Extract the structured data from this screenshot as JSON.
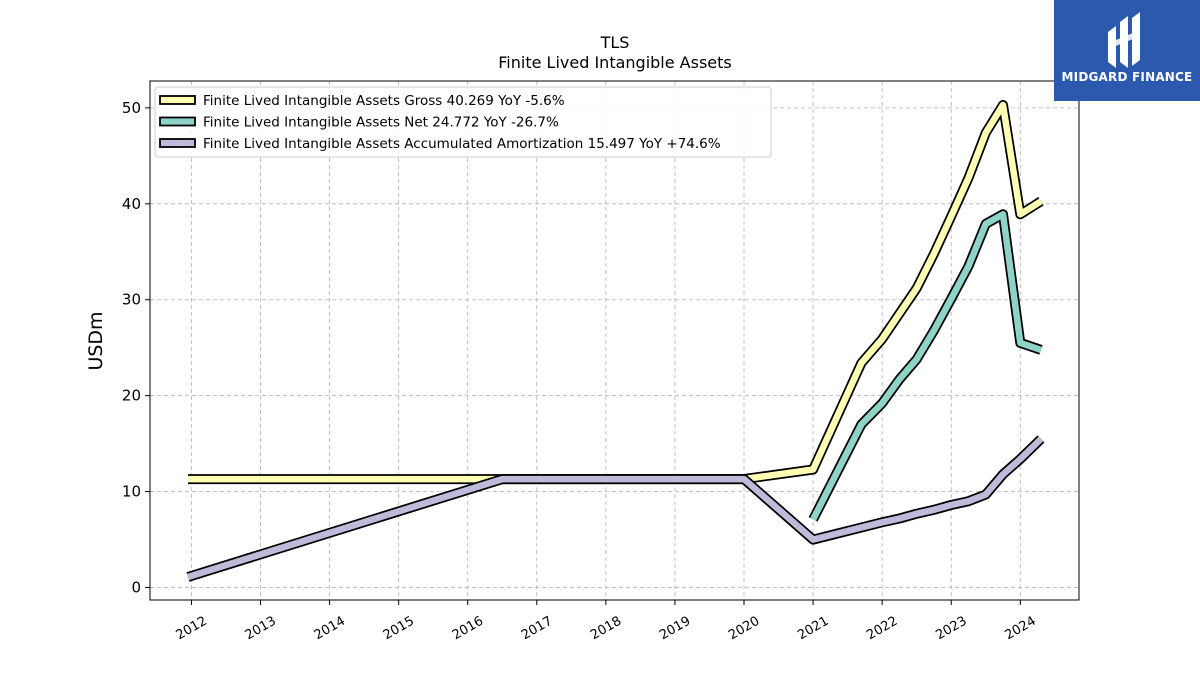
{
  "chart_data": {
    "type": "line",
    "title": "TLS",
    "subtitle": "Finite Lived Intangible Assets",
    "xlabel": "",
    "ylabel": "USDm",
    "xlim": [
      2011.4,
      2024.85
    ],
    "ylim": [
      -1.3,
      52.8
    ],
    "x_ticks": [
      "2012",
      "2013",
      "2014",
      "2015",
      "2016",
      "2017",
      "2018",
      "2019",
      "2020",
      "2021",
      "2022",
      "2023",
      "2024"
    ],
    "y_ticks": [
      "0",
      "10",
      "20",
      "30",
      "40",
      "50"
    ],
    "grid": true,
    "legend_position": "top-left",
    "series": [
      {
        "name": "Finite Lived Intangible Assets Gross",
        "legend_label": "Finite Lived Intangible Assets Gross  40.269 YoY -5.6%",
        "color": "#ffffb3",
        "x": [
          2011.95,
          2020.0,
          2021.0,
          2021.7,
          2022.0,
          2022.5,
          2022.75,
          2023.0,
          2023.25,
          2023.5,
          2023.75,
          2024.0,
          2024.3
        ],
        "y": [
          11.3,
          11.3,
          12.3,
          23.4,
          25.9,
          31.2,
          34.8,
          38.7,
          42.7,
          47.4,
          50.3,
          38.9,
          40.269
        ]
      },
      {
        "name": "Finite Lived Intangible Assets Net",
        "legend_label": "Finite Lived Intangible Assets Net  24.772 YoY -26.7%",
        "color": "#8dd3c7",
        "x": [
          2021.0,
          2021.7,
          2022.0,
          2022.25,
          2022.5,
          2022.75,
          2023.0,
          2023.25,
          2023.5,
          2023.75,
          2024.0,
          2024.3
        ],
        "y": [
          7.1,
          17.0,
          19.2,
          21.7,
          23.8,
          26.8,
          30.1,
          33.5,
          37.9,
          38.9,
          25.5,
          24.772
        ]
      },
      {
        "name": "Finite Lived Intangible Assets Accumulated Amortization",
        "legend_label": "Finite Lived Intangible Assets Accumulated Amortization  15.497 YoY +74.6%",
        "color": "#bebada",
        "x": [
          2011.95,
          2016.5,
          2020.0,
          2021.0,
          2022.0,
          2022.25,
          2022.5,
          2022.75,
          2023.0,
          2023.25,
          2023.5,
          2023.75,
          2024.0,
          2024.3
        ],
        "y": [
          1.1,
          11.3,
          11.3,
          5.0,
          6.8,
          7.2,
          7.7,
          8.1,
          8.6,
          9.0,
          9.7,
          11.8,
          13.4,
          15.497
        ]
      }
    ]
  },
  "logo": {
    "text": "MIDGARD FINANCE"
  }
}
